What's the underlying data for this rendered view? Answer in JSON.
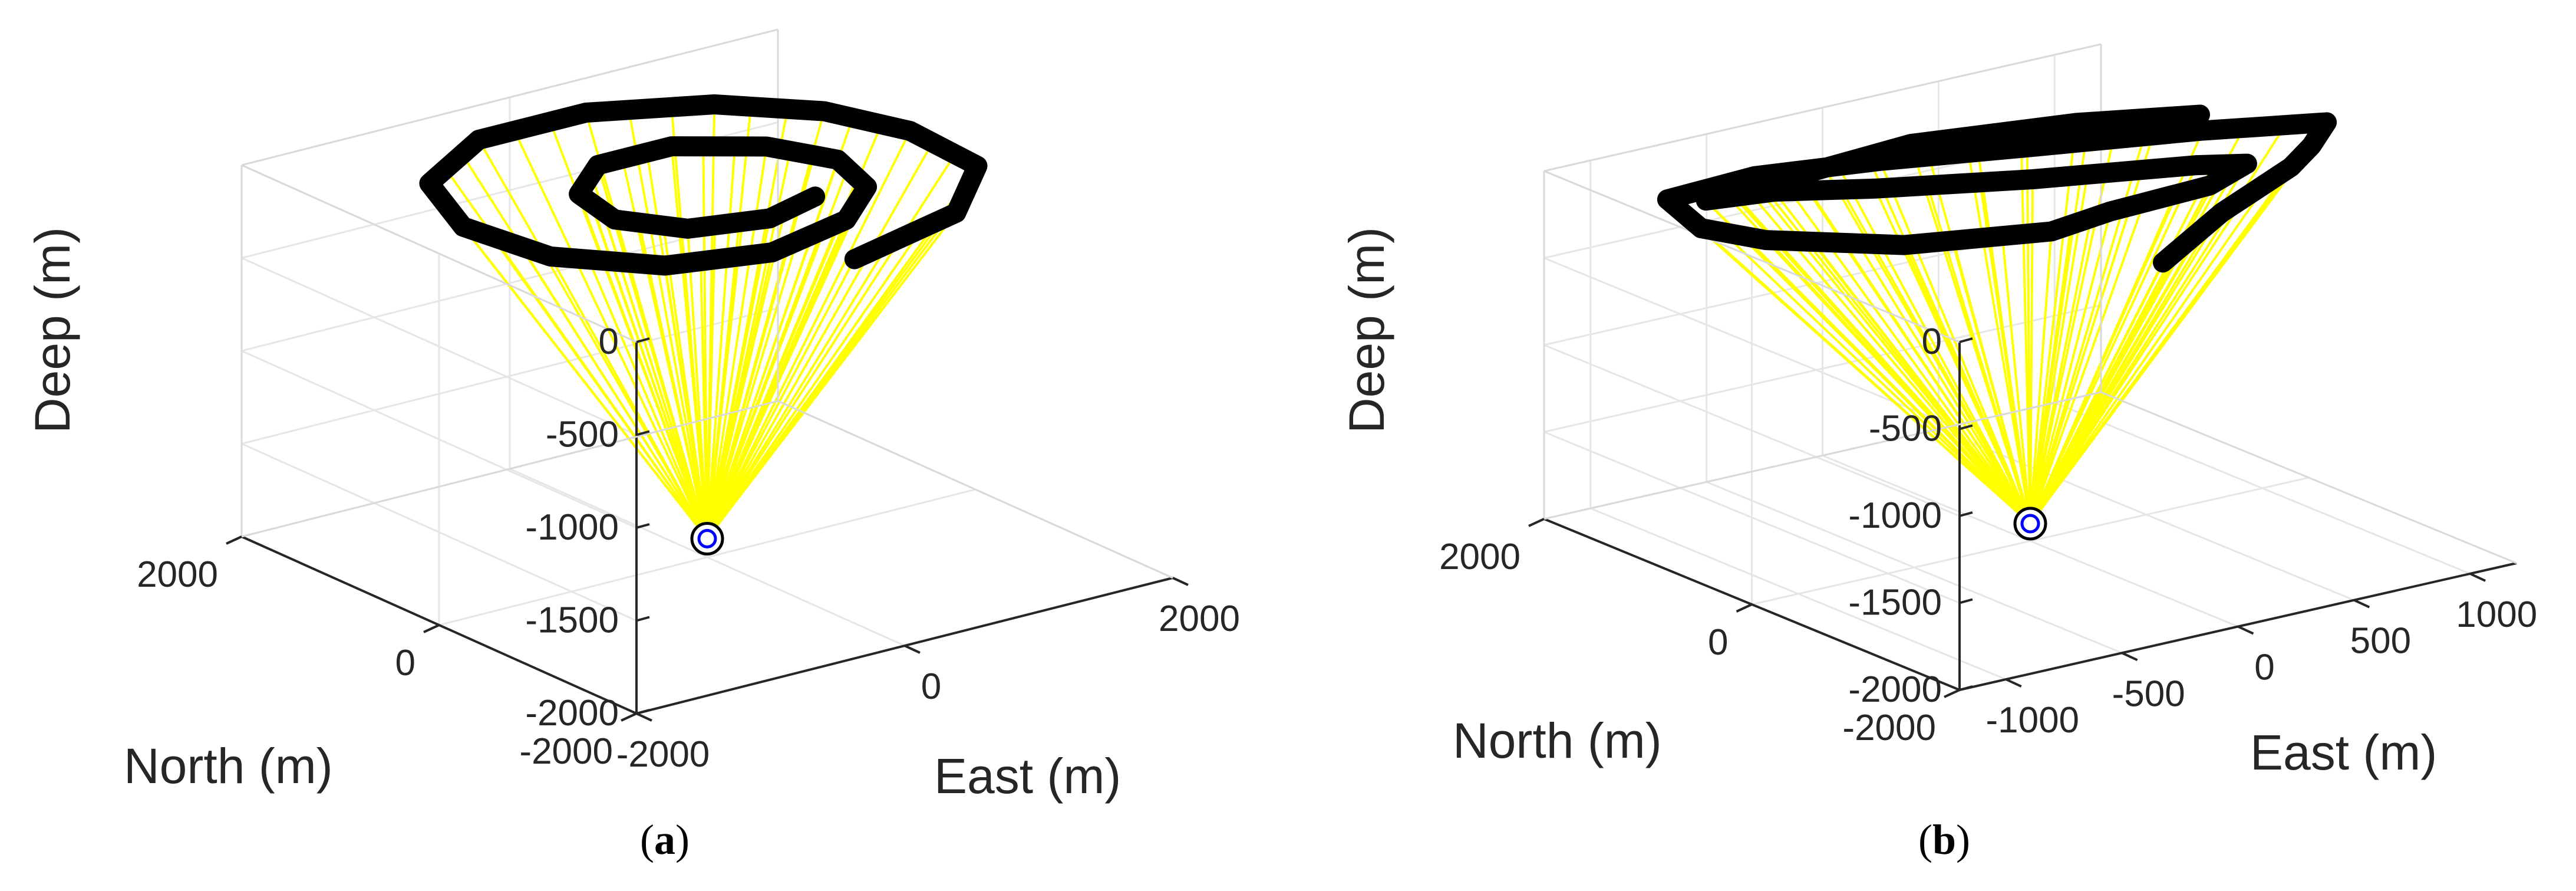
{
  "colors": {
    "trajectory": "#000000",
    "rays": "#ffff00",
    "grid": "#e6e6e6",
    "box": "#262626",
    "receiver_outer": "#000000",
    "receiver_inner": "#0000ff"
  },
  "chart_data": [
    {
      "type": "line3d",
      "caption_letter": "a",
      "xlabel": "East (m)",
      "ylabel": "North (m)",
      "zlabel": "Deep (m)",
      "xlim": [
        -2000,
        2000
      ],
      "ylim": [
        -2000,
        2000
      ],
      "zlim": [
        -2000,
        0
      ],
      "xticks": [
        -2000,
        0,
        2000
      ],
      "yticks": [
        -2000,
        0,
        2000
      ],
      "zticks": [
        -2000,
        -1500,
        -1000,
        -500,
        0
      ],
      "xtick_labels": [
        "-2000",
        "0",
        "2000"
      ],
      "ytick_labels": [
        "-2000",
        "0",
        "2000"
      ],
      "ztick_labels": [
        "-2000",
        "-1500",
        "-1000",
        "-500",
        "0"
      ],
      "grid": true,
      "receiver": {
        "x": 0,
        "y": 0,
        "z": -1900
      },
      "series": [
        {
          "role": "trajectory",
          "points": [
            [
              -80,
              -1600,
              0
            ],
            [
              900,
              -1300,
              0
            ],
            [
              1500,
              -700,
              0
            ],
            [
              1550,
              50,
              0
            ],
            [
              1350,
              650,
              0
            ],
            [
              900,
              1150,
              0
            ],
            [
              200,
              1500,
              0
            ],
            [
              -600,
              1500,
              0
            ],
            [
              -1300,
              1050,
              0
            ],
            [
              -1600,
              300,
              0
            ],
            [
              -1500,
              -450,
              0
            ],
            [
              -1050,
              -1000,
              0
            ],
            [
              -400,
              -1200,
              0
            ],
            [
              300,
              -1000,
              0
            ],
            [
              750,
              -600,
              0
            ],
            [
              900,
              -100,
              0
            ],
            [
              700,
              350,
              0
            ],
            [
              250,
              700,
              0
            ],
            [
              -300,
              700,
              0
            ],
            [
              -700,
              350,
              0
            ],
            [
              -800,
              -150,
              0
            ],
            [
              -550,
              -550,
              0
            ],
            [
              -50,
              -700,
              0
            ],
            [
              400,
              -550,
              0
            ]
          ]
        }
      ]
    },
    {
      "type": "line3d",
      "caption_letter": "b",
      "xlabel": "East (m)",
      "ylabel": "North (m)",
      "zlabel": "Deep (m)",
      "xlim": [
        -1200,
        1200
      ],
      "ylim": [
        -2000,
        2000
      ],
      "zlim": [
        -2000,
        0
      ],
      "xticks": [
        -1000,
        -500,
        0,
        500,
        1000
      ],
      "yticks": [
        -2000,
        0,
        2000
      ],
      "zticks": [
        -2000,
        -1500,
        -1000,
        -500,
        0
      ],
      "xtick_labels": [
        "-1000",
        "-500",
        "0",
        "500",
        "1000"
      ],
      "ytick_labels": [
        "-2000",
        "0",
        "2000"
      ],
      "ztick_labels": [
        "-2000",
        "-1500",
        "-1000",
        "-500",
        "0"
      ],
      "grid": true,
      "receiver": {
        "x": 0,
        "y": 0,
        "z": -1900
      },
      "series": [
        {
          "role": "trajectory",
          "points": [
            [
              -100,
              -1500,
              0
            ],
            [
              400,
              -950,
              0
            ],
            [
              900,
              -500,
              0
            ],
            [
              1100,
              -250,
              0
            ],
            [
              1300,
              50,
              0
            ],
            [
              900,
              350,
              0
            ],
            [
              300,
              700,
              0
            ],
            [
              -200,
              1000,
              0
            ],
            [
              -650,
              1200,
              0
            ],
            [
              -1050,
              1150,
              0
            ],
            [
              -1150,
              600,
              0
            ],
            [
              -1050,
              200,
              0
            ],
            [
              -700,
              -350,
              0
            ],
            [
              -200,
              -650,
              0
            ],
            [
              100,
              -550,
              0
            ],
            [
              550,
              -500,
              0
            ],
            [
              800,
              -300,
              0
            ],
            [
              650,
              -150,
              0
            ],
            [
              100,
              200,
              0
            ],
            [
              -400,
              600,
              0
            ],
            [
              -700,
              900,
              0
            ],
            [
              -950,
              1000,
              0
            ],
            [
              -600,
              1050,
              0
            ],
            [
              0,
              1150,
              0
            ],
            [
              600,
              900,
              0
            ],
            [
              1000,
              600,
              0
            ]
          ]
        }
      ]
    }
  ]
}
